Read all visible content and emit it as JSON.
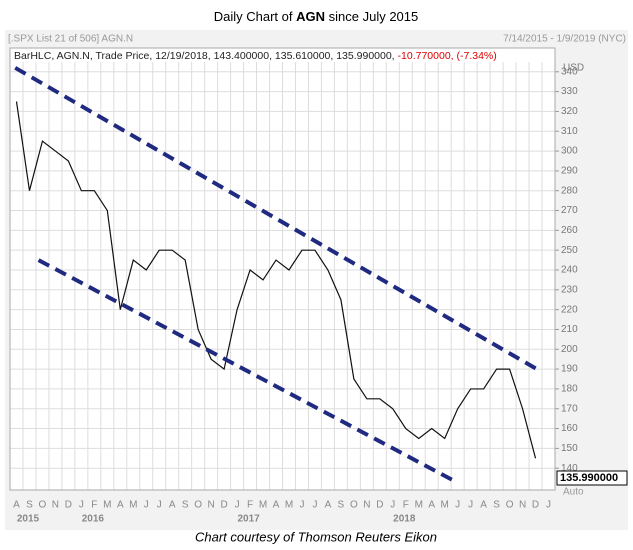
{
  "chart_data": {
    "type": "line",
    "title_parts": [
      "Daily Chart of ",
      "AGN",
      " since July 2015"
    ],
    "list_label": "[.SPX List 21 of 506] AGN.N",
    "date_range": "7/14/2015 - 1/9/2019 (NYC)",
    "legend_text": "BarHLC, AGN.N, Trade Price, 12/19/2018, 143.400000, 135.610000, 135.990000,",
    "legend_change": "-10.770000, (-7.34%)",
    "currency": "USD",
    "last_price": "135.990000",
    "scale_mode": "Auto",
    "footer": "Chart courtesy of Thomson Reuters Eikon",
    "categories": [
      "A",
      "S",
      "O",
      "N",
      "D",
      "J",
      "F",
      "M",
      "A",
      "M",
      "J",
      "J",
      "A",
      "S",
      "O",
      "N",
      "D",
      "J",
      "F",
      "M",
      "A",
      "M",
      "J",
      "J",
      "A",
      "S",
      "O",
      "N",
      "D",
      "J",
      "F",
      "M",
      "A",
      "M",
      "J",
      "J",
      "A",
      "S",
      "O",
      "N",
      "D",
      "J"
    ],
    "year_groups": [
      {
        "label": "2015",
        "count": 5
      },
      {
        "label": "2016",
        "count": 12
      },
      {
        "label": "2017",
        "count": 12
      },
      {
        "label": "2018",
        "count": 12
      }
    ],
    "series": [
      {
        "name": "AGN.N",
        "color": "#111111",
        "values": [
          325,
          280,
          305,
          300,
          295,
          280,
          280,
          270,
          220,
          245,
          240,
          250,
          250,
          245,
          210,
          195,
          190,
          220,
          240,
          235,
          245,
          240,
          250,
          250,
          240,
          225,
          185,
          175,
          175,
          170,
          160,
          155,
          160,
          155,
          170,
          180,
          180,
          190,
          190,
          170,
          145,
          null
        ]
      }
    ],
    "trendlines": [
      {
        "color": "#1f2a80",
        "x": [
          -0.1,
          40.1
        ],
        "values": [
          342,
          190
        ]
      },
      {
        "color": "#1f2a80",
        "x": [
          1.7,
          33.9
        ],
        "values": [
          245,
          133
        ]
      }
    ],
    "ylim": [
      129,
      352
    ],
    "yticks": [
      140,
      150,
      160,
      170,
      180,
      190,
      200,
      210,
      220,
      230,
      240,
      250,
      260,
      270,
      280,
      290,
      300,
      310,
      320,
      330,
      340
    ],
    "grid": true
  }
}
